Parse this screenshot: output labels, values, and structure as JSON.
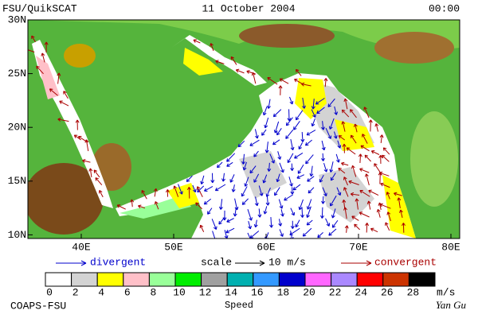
{
  "header": {
    "source": "FSU/QuikSCAT",
    "date": "11 October 2004",
    "time": "00:00"
  },
  "map": {
    "lat_labels": [
      "30N",
      "25N",
      "20N",
      "15N",
      "10N"
    ],
    "lon_labels": [
      "40E",
      "50E",
      "60E",
      "70E",
      "80E"
    ]
  },
  "key": {
    "divergent": "divergent",
    "scale": "scale",
    "scale_value": "10 m/s",
    "convergent": "convergent"
  },
  "colorbar": {
    "labels": [
      "0",
      "2",
      "4",
      "6",
      "8",
      "10",
      "12",
      "14",
      "16",
      "18",
      "20",
      "22",
      "24",
      "26",
      "28"
    ],
    "colors": [
      "#ffffff",
      "#d3d3d3",
      "#ffff00",
      "#ffc0c8",
      "#99ff99",
      "#00ee00",
      "#a0a0a0",
      "#00b0b0",
      "#3399ff",
      "#0000cc",
      "#ff66ff",
      "#aa88ff",
      "#ff0000",
      "#cc3300",
      "#000000"
    ],
    "unit": "m/s",
    "title": "Speed"
  },
  "footer": {
    "left": "COAPS-FSU",
    "right": "Yan Gu"
  }
}
